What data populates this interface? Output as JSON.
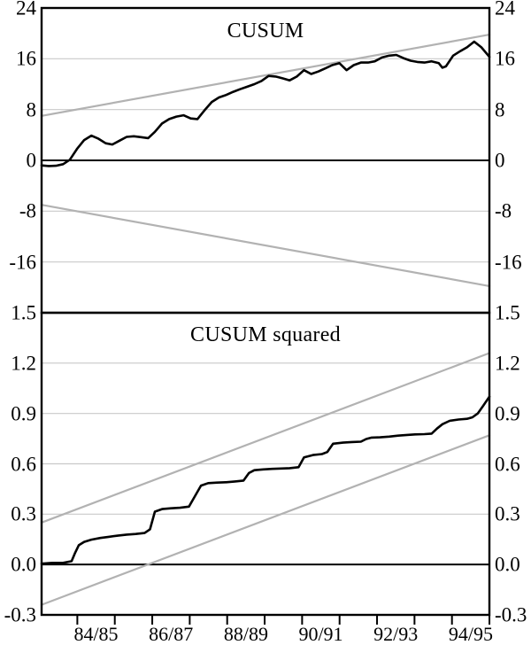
{
  "figure": {
    "background": "#ffffff",
    "text_color": "#000000",
    "grid_color": "#c9c9c9",
    "bound_color": "#b2b2b2",
    "line_color": "#000000"
  },
  "x_axis": {
    "tick_count": 12,
    "ticks_start_frac": 0.0798,
    "ticks_step_frac": 0.08366,
    "label_gap_indices": [
      0,
      2,
      4,
      6,
      8,
      10
    ],
    "labels": [
      "84/85",
      "86/87",
      "88/89",
      "90/91",
      "92/93",
      "94/95"
    ]
  },
  "chart_data": [
    {
      "type": "line",
      "title": "CUSUM",
      "xlabel": "",
      "ylabel": "",
      "ylim": [
        -24,
        24
      ],
      "grid": true,
      "legend": "none",
      "yticks": [
        {
          "label": "24",
          "value": 24
        },
        {
          "label": "16",
          "value": 16
        },
        {
          "label": "8",
          "value": 8
        },
        {
          "label": "0",
          "value": 0
        },
        {
          "label": "-8",
          "value": -8
        },
        {
          "label": "-16",
          "value": -16
        }
      ],
      "grid_values": [
        16,
        8,
        -8,
        -16
      ],
      "zero_value": 0,
      "series": [
        {
          "name": "cusum",
          "role": "data",
          "color": "#000000",
          "width": 2.6,
          "points": [
            [
              0.0,
              -0.8
            ],
            [
              0.016,
              -0.9
            ],
            [
              0.032,
              -0.85
            ],
            [
              0.048,
              -0.6
            ],
            [
              0.063,
              0.1
            ],
            [
              0.079,
              1.8
            ],
            [
              0.095,
              3.2
            ],
            [
              0.111,
              3.9
            ],
            [
              0.127,
              3.4
            ],
            [
              0.143,
              2.7
            ],
            [
              0.158,
              2.5
            ],
            [
              0.174,
              3.1
            ],
            [
              0.19,
              3.7
            ],
            [
              0.206,
              3.8
            ],
            [
              0.222,
              3.65
            ],
            [
              0.238,
              3.5
            ],
            [
              0.253,
              4.5
            ],
            [
              0.269,
              5.8
            ],
            [
              0.285,
              6.5
            ],
            [
              0.301,
              6.9
            ],
            [
              0.317,
              7.1
            ],
            [
              0.333,
              6.6
            ],
            [
              0.348,
              6.5
            ],
            [
              0.364,
              7.9
            ],
            [
              0.38,
              9.2
            ],
            [
              0.396,
              9.9
            ],
            [
              0.412,
              10.3
            ],
            [
              0.428,
              10.8
            ],
            [
              0.443,
              11.2
            ],
            [
              0.459,
              11.6
            ],
            [
              0.475,
              12.0
            ],
            [
              0.491,
              12.5
            ],
            [
              0.507,
              13.3
            ],
            [
              0.523,
              13.2
            ],
            [
              0.539,
              12.9
            ],
            [
              0.554,
              12.6
            ],
            [
              0.57,
              13.2
            ],
            [
              0.586,
              14.2
            ],
            [
              0.602,
              13.6
            ],
            [
              0.618,
              14.0
            ],
            [
              0.634,
              14.5
            ],
            [
              0.649,
              15.0
            ],
            [
              0.665,
              15.3
            ],
            [
              0.681,
              14.2
            ],
            [
              0.697,
              15.0
            ],
            [
              0.713,
              15.4
            ],
            [
              0.729,
              15.4
            ],
            [
              0.744,
              15.6
            ],
            [
              0.76,
              16.2
            ],
            [
              0.776,
              16.5
            ],
            [
              0.792,
              16.6
            ],
            [
              0.808,
              16.1
            ],
            [
              0.824,
              15.7
            ],
            [
              0.839,
              15.5
            ],
            [
              0.855,
              15.4
            ],
            [
              0.871,
              15.6
            ],
            [
              0.887,
              15.3
            ],
            [
              0.895,
              14.6
            ],
            [
              0.903,
              14.8
            ],
            [
              0.919,
              16.5
            ],
            [
              0.935,
              17.2
            ],
            [
              0.95,
              17.8
            ],
            [
              0.966,
              18.7
            ],
            [
              0.982,
              17.8
            ],
            [
              1.0,
              16.3
            ]
          ]
        },
        {
          "name": "upper-5pct-significance-bound",
          "role": "bound",
          "color": "#b2b2b2",
          "width": 2.2,
          "points": [
            [
              0.0,
              7.0
            ],
            [
              1.0,
              19.8
            ]
          ]
        },
        {
          "name": "lower-5pct-significance-bound",
          "role": "bound",
          "color": "#b2b2b2",
          "width": 2.2,
          "points": [
            [
              0.0,
              -7.0
            ],
            [
              1.0,
              -19.8
            ]
          ]
        }
      ]
    },
    {
      "type": "line",
      "title": "CUSUM squared",
      "xlabel": "",
      "ylabel": "",
      "ylim": [
        -0.3,
        1.5
      ],
      "grid": true,
      "legend": "none",
      "yticks": [
        {
          "label": "1.5",
          "value": 1.5
        },
        {
          "label": "1.2",
          "value": 1.2
        },
        {
          "label": "0.9",
          "value": 0.9
        },
        {
          "label": "0.6",
          "value": 0.6
        },
        {
          "label": "0.3",
          "value": 0.3
        },
        {
          "label": "0.0",
          "value": 0.0
        },
        {
          "label": "-0.3",
          "value": -0.3
        }
      ],
      "grid_values": [
        1.2,
        0.9,
        0.6,
        0.3
      ],
      "zero_value": 0.0,
      "series": [
        {
          "name": "cusum-squared",
          "role": "data",
          "color": "#000000",
          "width": 2.6,
          "points": [
            [
              0.0,
              0.005
            ],
            [
              0.024,
              0.01
            ],
            [
              0.048,
              0.01
            ],
            [
              0.067,
              0.02
            ],
            [
              0.075,
              0.07
            ],
            [
              0.083,
              0.115
            ],
            [
              0.095,
              0.135
            ],
            [
              0.111,
              0.148
            ],
            [
              0.131,
              0.158
            ],
            [
              0.15,
              0.165
            ],
            [
              0.17,
              0.172
            ],
            [
              0.19,
              0.178
            ],
            [
              0.21,
              0.182
            ],
            [
              0.23,
              0.188
            ],
            [
              0.242,
              0.21
            ],
            [
              0.253,
              0.315
            ],
            [
              0.269,
              0.33
            ],
            [
              0.289,
              0.335
            ],
            [
              0.309,
              0.338
            ],
            [
              0.329,
              0.345
            ],
            [
              0.341,
              0.4
            ],
            [
              0.356,
              0.47
            ],
            [
              0.372,
              0.485
            ],
            [
              0.392,
              0.488
            ],
            [
              0.412,
              0.49
            ],
            [
              0.432,
              0.495
            ],
            [
              0.451,
              0.5
            ],
            [
              0.463,
              0.545
            ],
            [
              0.475,
              0.562
            ],
            [
              0.495,
              0.567
            ],
            [
              0.515,
              0.57
            ],
            [
              0.535,
              0.572
            ],
            [
              0.554,
              0.574
            ],
            [
              0.574,
              0.58
            ],
            [
              0.586,
              0.638
            ],
            [
              0.606,
              0.652
            ],
            [
              0.626,
              0.658
            ],
            [
              0.638,
              0.67
            ],
            [
              0.651,
              0.72
            ],
            [
              0.673,
              0.726
            ],
            [
              0.693,
              0.73
            ],
            [
              0.713,
              0.732
            ],
            [
              0.725,
              0.748
            ],
            [
              0.737,
              0.756
            ],
            [
              0.756,
              0.758
            ],
            [
              0.776,
              0.762
            ],
            [
              0.796,
              0.768
            ],
            [
              0.816,
              0.772
            ],
            [
              0.834,
              0.775
            ],
            [
              0.855,
              0.777
            ],
            [
              0.871,
              0.78
            ],
            [
              0.883,
              0.81
            ],
            [
              0.895,
              0.836
            ],
            [
              0.911,
              0.856
            ],
            [
              0.931,
              0.864
            ],
            [
              0.95,
              0.868
            ],
            [
              0.962,
              0.877
            ],
            [
              0.974,
              0.9
            ],
            [
              0.986,
              0.945
            ],
            [
              1.0,
              1.0
            ]
          ]
        },
        {
          "name": "upper-5pct-significance-bound",
          "role": "bound",
          "color": "#b2b2b2",
          "width": 2.2,
          "points": [
            [
              0.0,
              0.25
            ],
            [
              1.0,
              1.26
            ]
          ]
        },
        {
          "name": "lower-5pct-significance-bound",
          "role": "bound",
          "color": "#b2b2b2",
          "width": 2.2,
          "points": [
            [
              0.0,
              -0.24
            ],
            [
              1.0,
              0.77
            ]
          ]
        }
      ]
    }
  ]
}
